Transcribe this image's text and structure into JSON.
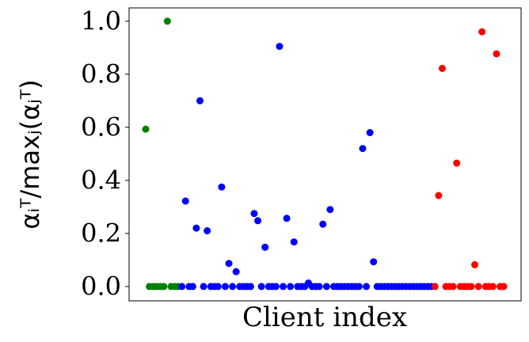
{
  "chart_data": {
    "type": "scatter",
    "xlabel": "Client index",
    "ylabel": "αᵢᵀ/maxⱼ(αⱼᵀ)",
    "xlim": [
      -4.6,
      103.8
    ],
    "ylim": [
      -0.054,
      1.05
    ],
    "yticks": [
      {
        "value": 0,
        "label": "0.0"
      },
      0.2,
      0.4,
      0.6,
      0.8,
      {
        "value": 1,
        "label": "1.0"
      }
    ],
    "series": [
      {
        "color": "#008000",
        "x": [
          0,
          1,
          2,
          3,
          4,
          5,
          6,
          7,
          8,
          9
        ],
        "values": [
          0.593,
          0,
          0,
          0,
          0,
          0,
          1,
          0,
          0,
          0
        ]
      },
      {
        "color": "#0000ff",
        "x": [
          10,
          11,
          12,
          13,
          14,
          15,
          16,
          17,
          18,
          19,
          20,
          21,
          22,
          23,
          24,
          25,
          26,
          27,
          28,
          29,
          30,
          31,
          32,
          33,
          34,
          35,
          36,
          37,
          38,
          39,
          40,
          41,
          42,
          43,
          44,
          45,
          46,
          47,
          48,
          49,
          50,
          51,
          52,
          53,
          54,
          55,
          56,
          57,
          58,
          59,
          60,
          61,
          62,
          63,
          64,
          65,
          66,
          67,
          68,
          69,
          70,
          71,
          72,
          73,
          74,
          75,
          76,
          77,
          78,
          79
        ],
        "values": [
          0,
          0.322,
          0,
          0,
          0.22,
          0.7,
          0,
          0.21,
          0,
          0,
          0,
          0.375,
          0,
          0.087,
          0,
          0.056,
          0,
          0,
          0,
          0,
          0.275,
          0.248,
          0,
          0.148,
          0,
          0,
          0,
          0.905,
          0,
          0.257,
          0,
          0.168,
          0,
          0,
          0,
          0.013,
          0,
          0,
          0,
          0.235,
          0,
          0.29,
          0,
          0,
          0,
          0,
          0,
          0,
          0,
          0,
          0.52,
          0,
          0.58,
          0.093,
          0,
          0,
          0,
          0,
          0,
          0,
          0,
          0,
          0,
          0,
          0,
          0,
          0,
          0,
          0,
          0
        ]
      },
      {
        "color": "#ff0000",
        "x": [
          80,
          81,
          82,
          83,
          84,
          85,
          86,
          87,
          88,
          89,
          90,
          91,
          92,
          93,
          94,
          95,
          96,
          97,
          98,
          99
        ],
        "values": [
          0,
          0.343,
          0.822,
          0,
          0,
          0,
          0.465,
          0,
          0,
          0,
          0,
          0.082,
          0,
          0.96,
          0,
          0,
          0,
          0.877,
          0,
          0
        ]
      }
    ]
  }
}
